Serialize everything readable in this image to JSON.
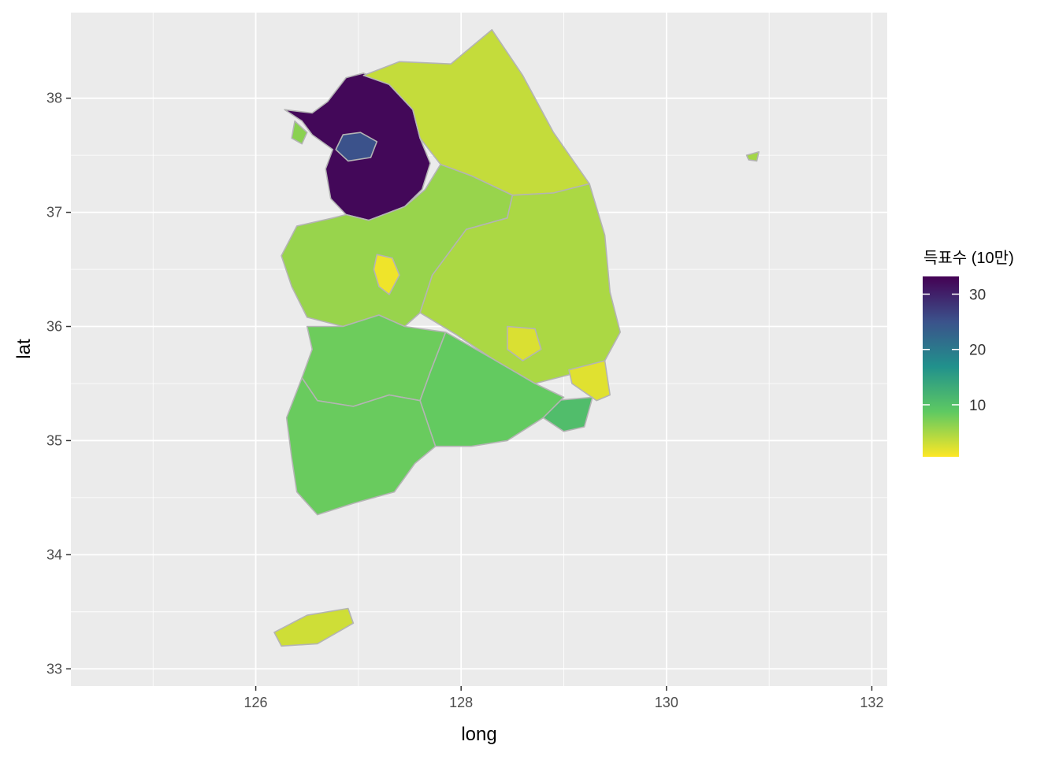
{
  "chart_data": {
    "type": "choropleth",
    "xlabel": "long",
    "ylabel": "lat",
    "xlim": [
      124.2,
      132.15
    ],
    "ylim": [
      32.85,
      38.75
    ],
    "x_ticks": [
      126,
      128,
      130,
      132
    ],
    "y_ticks": [
      33,
      34,
      35,
      36,
      37,
      38
    ],
    "grid": true,
    "legend": {
      "title": "득표수 (10만)",
      "position": "right",
      "palette": "viridis",
      "range": [
        0.6,
        33.2
      ],
      "ticks": [
        10,
        20,
        30
      ]
    },
    "border_color": "#b4b4b4",
    "regions": [
      {
        "value": 32.5,
        "outline": [
          [
            126.28,
            37.9
          ],
          [
            126.55,
            37.87
          ],
          [
            126.7,
            37.97
          ],
          [
            126.88,
            38.18
          ],
          [
            127.05,
            38.22
          ],
          [
            127.3,
            38.12
          ],
          [
            127.53,
            37.9
          ],
          [
            127.6,
            37.65
          ],
          [
            127.7,
            37.43
          ],
          [
            127.62,
            37.2
          ],
          [
            127.45,
            37.05
          ],
          [
            127.1,
            36.93
          ],
          [
            126.88,
            36.98
          ],
          [
            126.73,
            37.12
          ],
          [
            126.68,
            37.38
          ],
          [
            126.75,
            37.55
          ],
          [
            126.55,
            37.68
          ],
          [
            126.45,
            37.8
          ]
        ]
      },
      {
        "value": 25.0,
        "outline": [
          [
            126.78,
            37.55
          ],
          [
            126.85,
            37.68
          ],
          [
            127.02,
            37.7
          ],
          [
            127.18,
            37.62
          ],
          [
            127.12,
            37.48
          ],
          [
            126.9,
            37.45
          ]
        ]
      },
      {
        "value": 3.5,
        "outline": [
          [
            127.05,
            38.2
          ],
          [
            127.4,
            38.32
          ],
          [
            127.9,
            38.3
          ],
          [
            128.3,
            38.6
          ],
          [
            128.6,
            38.2
          ],
          [
            128.9,
            37.7
          ],
          [
            129.25,
            37.25
          ],
          [
            128.9,
            37.17
          ],
          [
            128.5,
            37.15
          ],
          [
            128.1,
            37.32
          ],
          [
            127.8,
            37.42
          ],
          [
            127.6,
            37.65
          ],
          [
            127.53,
            37.9
          ],
          [
            127.3,
            38.12
          ]
        ]
      },
      {
        "value": 5.8,
        "outline": [
          [
            127.1,
            36.93
          ],
          [
            127.45,
            37.05
          ],
          [
            127.65,
            37.2
          ],
          [
            127.8,
            37.42
          ],
          [
            128.1,
            37.32
          ],
          [
            128.5,
            37.15
          ],
          [
            128.45,
            36.95
          ],
          [
            128.05,
            36.85
          ],
          [
            127.72,
            36.45
          ],
          [
            127.6,
            36.12
          ],
          [
            127.45,
            36.0
          ],
          [
            127.2,
            36.1
          ],
          [
            126.85,
            36.0
          ],
          [
            126.5,
            36.08
          ],
          [
            126.35,
            36.35
          ],
          [
            126.25,
            36.62
          ],
          [
            126.4,
            36.88
          ],
          [
            126.75,
            36.95
          ],
          [
            126.88,
            36.98
          ]
        ]
      },
      {
        "value": 1.3,
        "outline": [
          [
            127.18,
            36.63
          ],
          [
            127.33,
            36.6
          ],
          [
            127.4,
            36.45
          ],
          [
            127.3,
            36.28
          ],
          [
            127.2,
            36.35
          ],
          [
            127.15,
            36.5
          ]
        ]
      },
      {
        "value": 4.8,
        "outline": [
          [
            128.5,
            37.15
          ],
          [
            128.9,
            37.17
          ],
          [
            129.25,
            37.25
          ],
          [
            129.4,
            36.8
          ],
          [
            129.45,
            36.3
          ],
          [
            129.55,
            35.95
          ],
          [
            129.4,
            35.7
          ],
          [
            129.15,
            35.6
          ],
          [
            128.72,
            35.5
          ],
          [
            128.3,
            35.72
          ],
          [
            127.95,
            35.93
          ],
          [
            127.6,
            36.12
          ],
          [
            127.72,
            36.45
          ],
          [
            128.05,
            36.85
          ],
          [
            128.45,
            36.95
          ]
        ]
      },
      {
        "value": 2.4,
        "outline": [
          [
            128.45,
            36.0
          ],
          [
            128.72,
            35.98
          ],
          [
            128.78,
            35.8
          ],
          [
            128.6,
            35.7
          ],
          [
            128.45,
            35.8
          ]
        ]
      },
      {
        "value": 2.1,
        "outline": [
          [
            129.05,
            35.62
          ],
          [
            129.4,
            35.7
          ],
          [
            129.45,
            35.4
          ],
          [
            129.32,
            35.35
          ],
          [
            129.08,
            35.5
          ]
        ]
      },
      {
        "value": 10.5,
        "outline": [
          [
            128.9,
            35.35
          ],
          [
            129.28,
            35.38
          ],
          [
            129.2,
            35.12
          ],
          [
            129.0,
            35.08
          ],
          [
            128.8,
            35.2
          ]
        ]
      },
      {
        "value": 8.0,
        "outline": [
          [
            126.5,
            36.0
          ],
          [
            126.85,
            36.0
          ],
          [
            127.2,
            36.1
          ],
          [
            127.45,
            36.0
          ],
          [
            127.85,
            35.95
          ],
          [
            127.7,
            35.6
          ],
          [
            127.6,
            35.35
          ],
          [
            127.3,
            35.4
          ],
          [
            126.95,
            35.3
          ],
          [
            126.6,
            35.35
          ],
          [
            126.45,
            35.55
          ],
          [
            126.55,
            35.8
          ]
        ]
      },
      {
        "value": 8.5,
        "outline": [
          [
            127.85,
            35.95
          ],
          [
            128.3,
            35.72
          ],
          [
            128.72,
            35.5
          ],
          [
            129.0,
            35.38
          ],
          [
            128.8,
            35.2
          ],
          [
            128.45,
            35.0
          ],
          [
            128.1,
            34.95
          ],
          [
            127.75,
            34.95
          ],
          [
            127.6,
            35.35
          ],
          [
            127.7,
            35.6
          ]
        ]
      },
      {
        "value": 8.2,
        "outline": [
          [
            126.45,
            35.55
          ],
          [
            126.6,
            35.35
          ],
          [
            126.95,
            35.3
          ],
          [
            127.3,
            35.4
          ],
          [
            127.6,
            35.35
          ],
          [
            127.75,
            34.95
          ],
          [
            127.55,
            34.8
          ],
          [
            127.35,
            34.55
          ],
          [
            126.95,
            34.45
          ],
          [
            126.6,
            34.35
          ],
          [
            126.4,
            34.55
          ],
          [
            126.35,
            34.85
          ],
          [
            126.3,
            35.2
          ]
        ]
      },
      {
        "value": 3.0,
        "outline": [
          [
            126.18,
            33.32
          ],
          [
            126.5,
            33.47
          ],
          [
            126.9,
            33.53
          ],
          [
            126.95,
            33.4
          ],
          [
            126.6,
            33.22
          ],
          [
            126.25,
            33.2
          ]
        ]
      },
      {
        "value": 6.5,
        "outline": [
          [
            126.38,
            37.8
          ],
          [
            126.5,
            37.7
          ],
          [
            126.45,
            37.6
          ],
          [
            126.35,
            37.65
          ]
        ]
      },
      {
        "value": 5.2,
        "outline": [
          [
            130.78,
            37.5
          ],
          [
            130.9,
            37.53
          ],
          [
            130.88,
            37.45
          ],
          [
            130.8,
            37.46
          ]
        ]
      }
    ]
  }
}
